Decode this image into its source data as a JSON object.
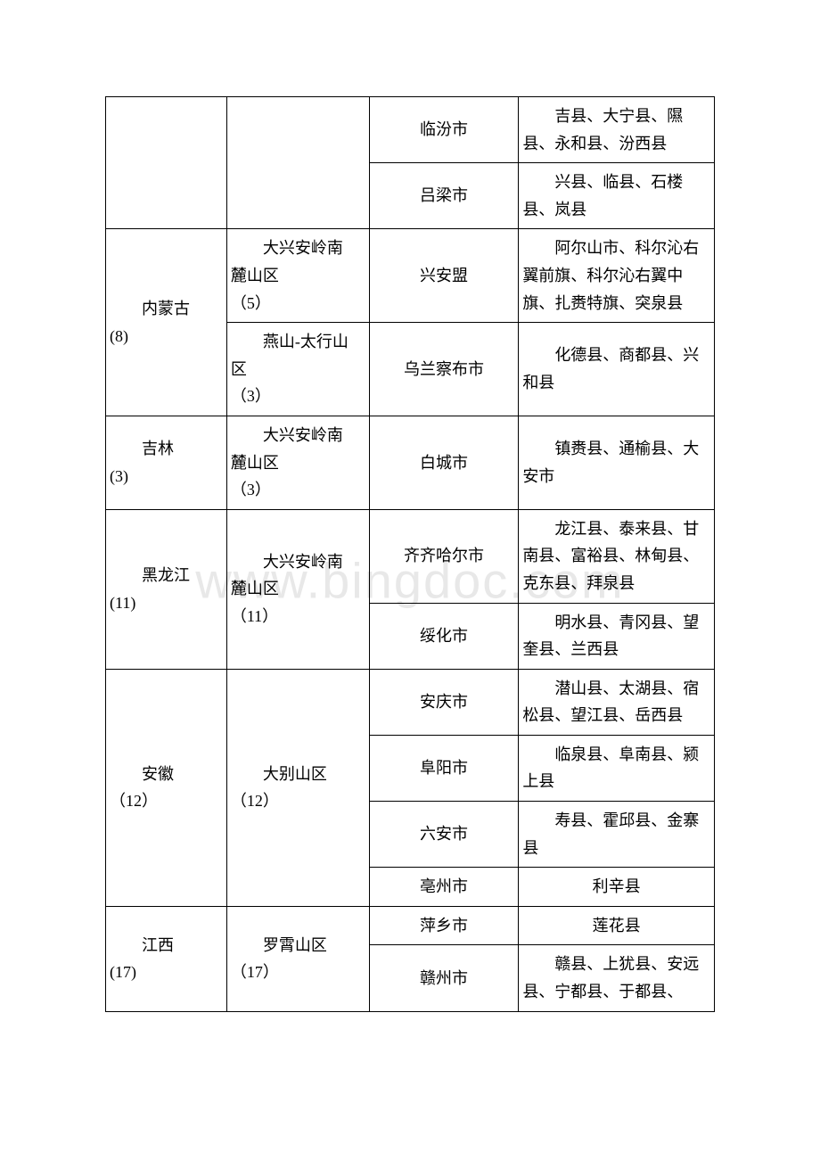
{
  "watermark": "www.bingdoc.com",
  "rows": [
    {
      "city": "临汾市",
      "counties": "吉县、大宁县、隰县、永和县、汾西县"
    },
    {
      "city": "吕梁市",
      "counties": "兴县、临县、石楼县、岚县"
    },
    {
      "province_l1": "内蒙古",
      "province_l2": "(8)",
      "region_l1": "大兴安岭南",
      "region_l2": "麓山区",
      "region_l3": "（5）",
      "city": "兴安盟",
      "counties": "阿尔山市、科尔沁右翼前旗、科尔沁右翼中旗、扎赉特旗、突泉县"
    },
    {
      "region_l1": "燕山-太行山",
      "region_l2": "区",
      "region_l3": "（3）",
      "city": "乌兰察布市",
      "counties": "化德县、商都县、兴和县"
    },
    {
      "province_l1": "吉林",
      "province_l2": "(3)",
      "region_l1": "大兴安岭南",
      "region_l2": "麓山区",
      "region_l3": "（3）",
      "city": "白城市",
      "counties": "镇赉县、通榆县、大安市"
    },
    {
      "province_l1": "黑龙江",
      "province_l2": "(11)",
      "region_l1": "大兴安岭南",
      "region_l2": "麓山区",
      "region_l3": "（11）",
      "city": "齐齐哈尔市",
      "counties": "龙江县、泰来县、甘南县、富裕县、林甸县、克东县、拜泉县"
    },
    {
      "city": "绥化市",
      "counties": "明水县、青冈县、望奎县、兰西县"
    },
    {
      "province_l1": "安徽",
      "province_l2": "（12）",
      "region_l1": "大别山区",
      "region_l2": "（12）",
      "city": "安庆市",
      "counties": "潜山县、太湖县、宿松县、望江县、岳西县"
    },
    {
      "city": "阜阳市",
      "counties": "临泉县、阜南县、颍上县"
    },
    {
      "city": "六安市",
      "counties": "寿县、霍邱县、金寨县"
    },
    {
      "city": "亳州市",
      "counties": "利辛县"
    },
    {
      "province_l1": "江西",
      "province_l2": "(17)",
      "region_l1": "罗霄山区",
      "region_l2": "（17）",
      "city": "萍乡市",
      "counties": "莲花县"
    },
    {
      "city": "赣州市",
      "counties": "赣县、上犹县、安远县、宁都县、于都县、"
    }
  ]
}
